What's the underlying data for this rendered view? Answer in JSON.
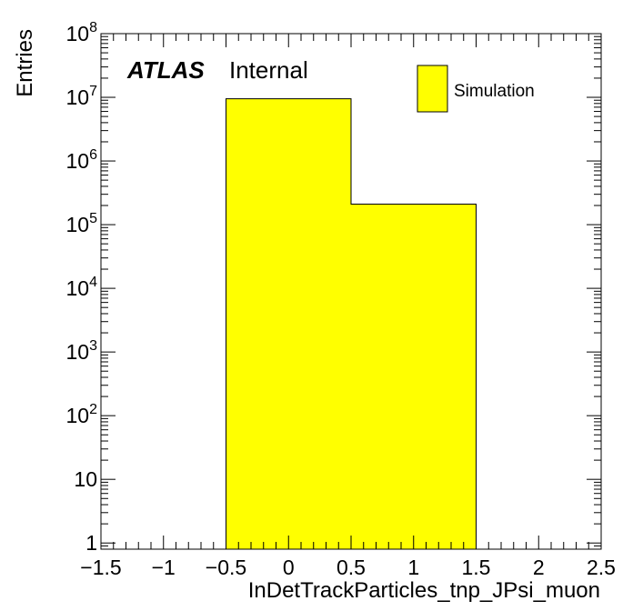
{
  "chart_data": {
    "type": "bar",
    "histogram": true,
    "bins": [
      {
        "low": -1.5,
        "high": -0.5,
        "value": 0
      },
      {
        "low": -0.5,
        "high": 0.5,
        "value": 9500000
      },
      {
        "low": 0.5,
        "high": 1.5,
        "value": 210000
      },
      {
        "low": 1.5,
        "high": 2.5,
        "value": 0
      }
    ],
    "series": [
      {
        "name": "Simulation",
        "color": "#ffff00"
      }
    ],
    "xlabel": "InDetTrackParticles_tnp_JPsi_muon",
    "ylabel": "Entries",
    "xlim": [
      -1.5,
      2.5
    ],
    "ylim": [
      0.8,
      100000000
    ],
    "yscale": "log",
    "x_ticks": [
      "−1.5",
      "−1",
      "−0.5",
      "0",
      "0.5",
      "1",
      "1.5",
      "2",
      "2.5"
    ],
    "y_ticks": [
      {
        "base": "1",
        "exp": ""
      },
      {
        "base": "10",
        "exp": ""
      },
      {
        "base": "10",
        "exp": "2"
      },
      {
        "base": "10",
        "exp": "3"
      },
      {
        "base": "10",
        "exp": "4"
      },
      {
        "base": "10",
        "exp": "5"
      },
      {
        "base": "10",
        "exp": "6"
      },
      {
        "base": "10",
        "exp": "7"
      },
      {
        "base": "10",
        "exp": "8"
      }
    ],
    "legend": {
      "position": "top-right",
      "entries": [
        "Simulation"
      ]
    },
    "annotation": {
      "experiment": "ATLAS",
      "status": "Internal"
    },
    "grid": false
  }
}
